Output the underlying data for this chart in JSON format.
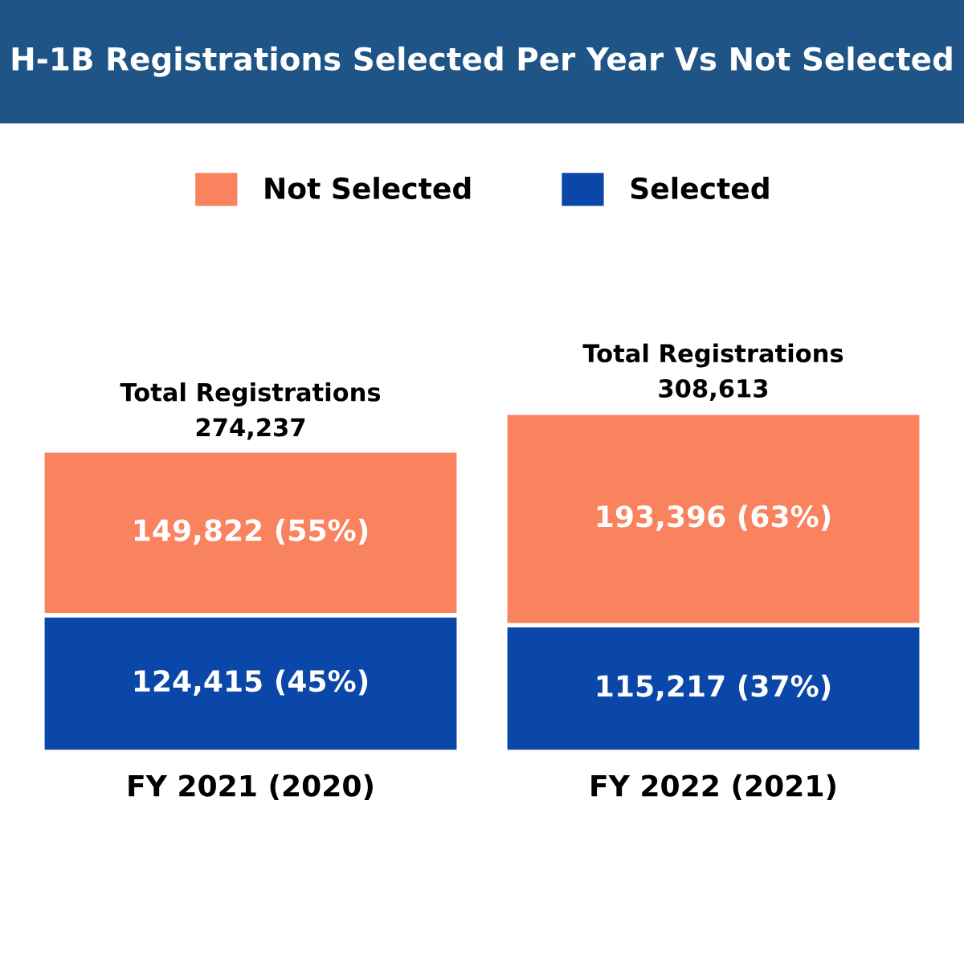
{
  "chart_data": {
    "type": "bar",
    "title": "H-1B Registrations Selected Per Year Vs Not Selected",
    "categories": [
      "FY 2021 (2020)",
      "FY 2022 (2021)"
    ],
    "stacked": true,
    "series": [
      {
        "name": "Selected",
        "color": "#0a47a8",
        "values": [
          124415,
          115217
        ],
        "value_labels": [
          "124,415 (45%)",
          "115,217 (37%)"
        ]
      },
      {
        "name": "Not Selected",
        "color": "#f9825f",
        "values": [
          149822,
          193396
        ],
        "value_labels": [
          "149,822 (55%)",
          "193,396 (63%)"
        ]
      }
    ],
    "totals": [
      "Total Registrations\n274,237",
      "Total Registrations\n308,613"
    ],
    "legend": "top",
    "grid": false
  }
}
